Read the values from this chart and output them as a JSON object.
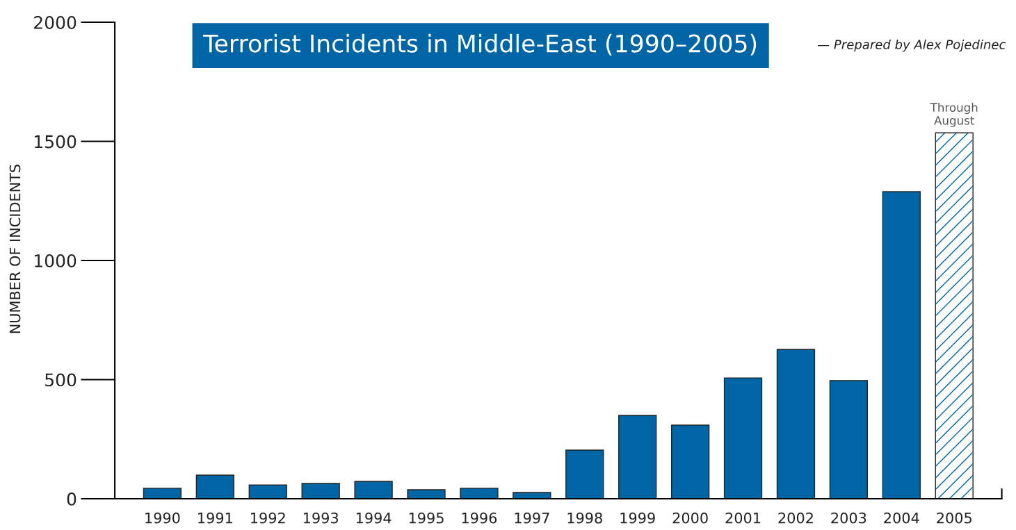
{
  "chart_data": {
    "type": "bar",
    "title": "Terrorist Incidents in Middle-East (1990–2005)",
    "ylabel": "NUMBER OF INCIDENTS",
    "categories": [
      "1990",
      "1991",
      "1992",
      "1993",
      "1994",
      "1995",
      "1996",
      "1997",
      "1998",
      "1999",
      "2000",
      "2001",
      "2002",
      "2003",
      "2004",
      "2005"
    ],
    "values": [
      44,
      99,
      58,
      64,
      73,
      38,
      44,
      26,
      204,
      350,
      309,
      507,
      627,
      496,
      1289,
      1536
    ],
    "colors": [
      "#0065a4",
      "#0065a4",
      "#0065a4",
      "#0065a4",
      "#0065a4",
      "#0065a4",
      "#0065a4",
      "#0065a4",
      "#0065a4",
      "#0065a4",
      "#0065a4",
      "#0065a4",
      "#0065a4",
      "#0065a4",
      "#0065a4",
      "#ffffff"
    ],
    "ylim": [
      0,
      2000
    ],
    "yticks": [
      0,
      500,
      1000,
      1500,
      2000
    ],
    "grid": false,
    "legend": false,
    "annotations": [
      {
        "text": "Through\nAugust",
        "x": "2005",
        "y": 1536
      },
      "— Prepared by Alex Pojedinec"
    ]
  }
}
